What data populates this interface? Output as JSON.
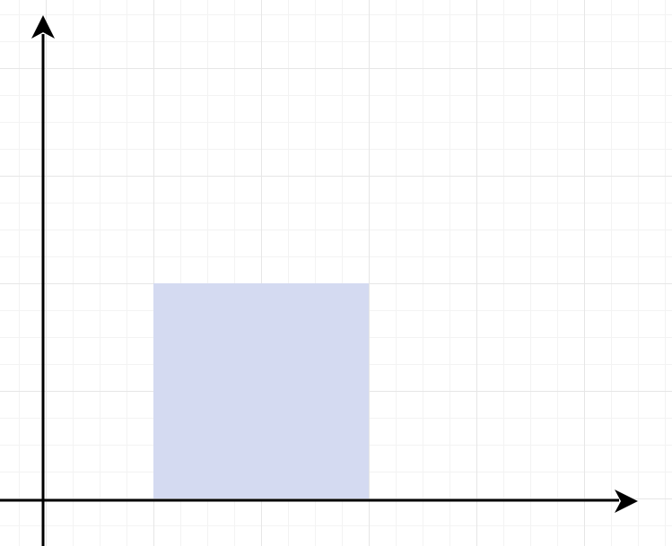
{
  "diagram": {
    "background_color": "#ffffff",
    "grid": {
      "enabled": true,
      "major_color": "#e6e6e6",
      "minor_color": "#f3f3f3"
    },
    "axes": {
      "color": "#000000",
      "x_axis_arrow": "right",
      "y_axis_arrow": "up"
    },
    "shape": {
      "type": "rectangle",
      "fill_color": "#d4daf1",
      "grid_units_x": [
        1,
        3
      ],
      "grid_units_y": [
        0,
        2
      ]
    }
  }
}
